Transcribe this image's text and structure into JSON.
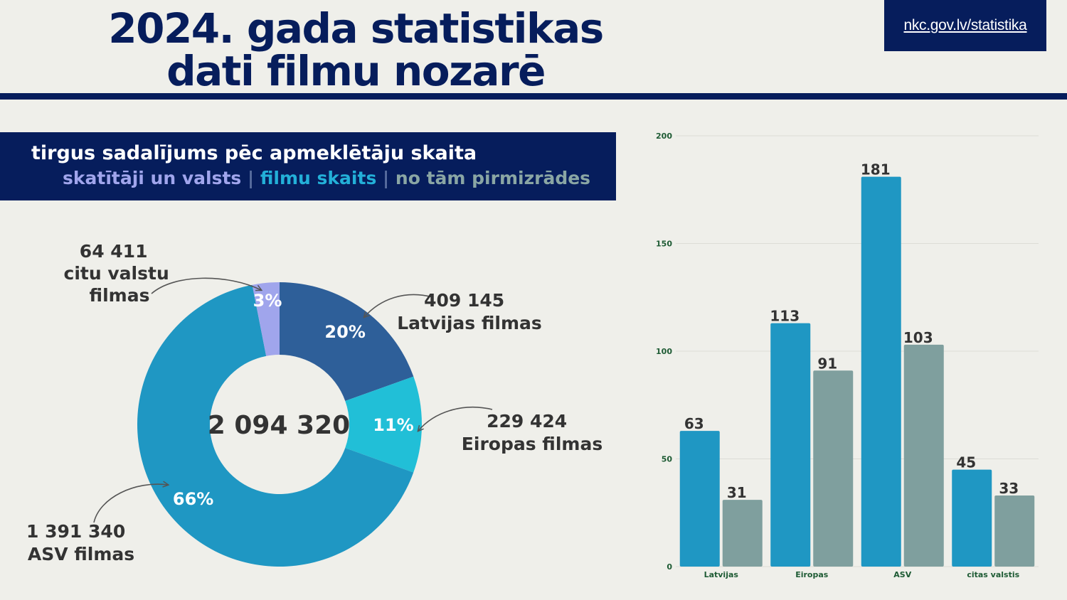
{
  "header": {
    "title_line1": "2024. gada statistikas",
    "title_line2": "dati filmu nozarē",
    "url": "nkc.gov.lv/statistika"
  },
  "subtitle": {
    "line1": "tirgus sadalījums pēc apmeklētāju skaita",
    "legend_a": "skatītāji un valsts",
    "separator": "|",
    "legend_b": "filmu skaits",
    "legend_c": "no tām pirmizrādes"
  },
  "colors": {
    "navy": "#061d5c",
    "latvijas": "#2e5f99",
    "eiropas": "#21bfd7",
    "asv": "#1f97c3",
    "citu": "#a0a5ec",
    "bar_films": "#1f97c3",
    "bar_premieres": "#7f9f9e"
  },
  "chart_data": [
    {
      "type": "pie",
      "variant": "donut",
      "center_label": "2 094 320",
      "slices": [
        {
          "name": "Latvijas filmas",
          "value": 409145,
          "value_label": "409 145",
          "percent_label": "20%",
          "color": "#2e5f99"
        },
        {
          "name": "Eiropas filmas",
          "value": 229424,
          "value_label": "229 424",
          "percent_label": "11%",
          "color": "#21bfd7"
        },
        {
          "name": "ASV filmas",
          "value": 1391340,
          "value_label": "1 391 340",
          "percent_label": "66%",
          "color": "#1f97c3"
        },
        {
          "name": "citu valstu filmas",
          "name_line1": "citu valstu",
          "name_line2": "filmas",
          "value": 64411,
          "value_label": "64 411",
          "percent_label": "3%",
          "color": "#a0a5ec"
        }
      ]
    },
    {
      "type": "bar",
      "categories": [
        "Latvijas",
        "Eiropas",
        "ASV",
        "citas valstis"
      ],
      "series": [
        {
          "name": "filmu skaits",
          "values": [
            63,
            113,
            181,
            45
          ],
          "color": "#1f97c3"
        },
        {
          "name": "no tām pirmizrādes",
          "values": [
            31,
            91,
            103,
            33
          ],
          "color": "#7f9f9e"
        }
      ],
      "ylim": [
        0,
        200
      ],
      "yticks": [
        0,
        50,
        100,
        150,
        200
      ],
      "grid": true
    }
  ]
}
